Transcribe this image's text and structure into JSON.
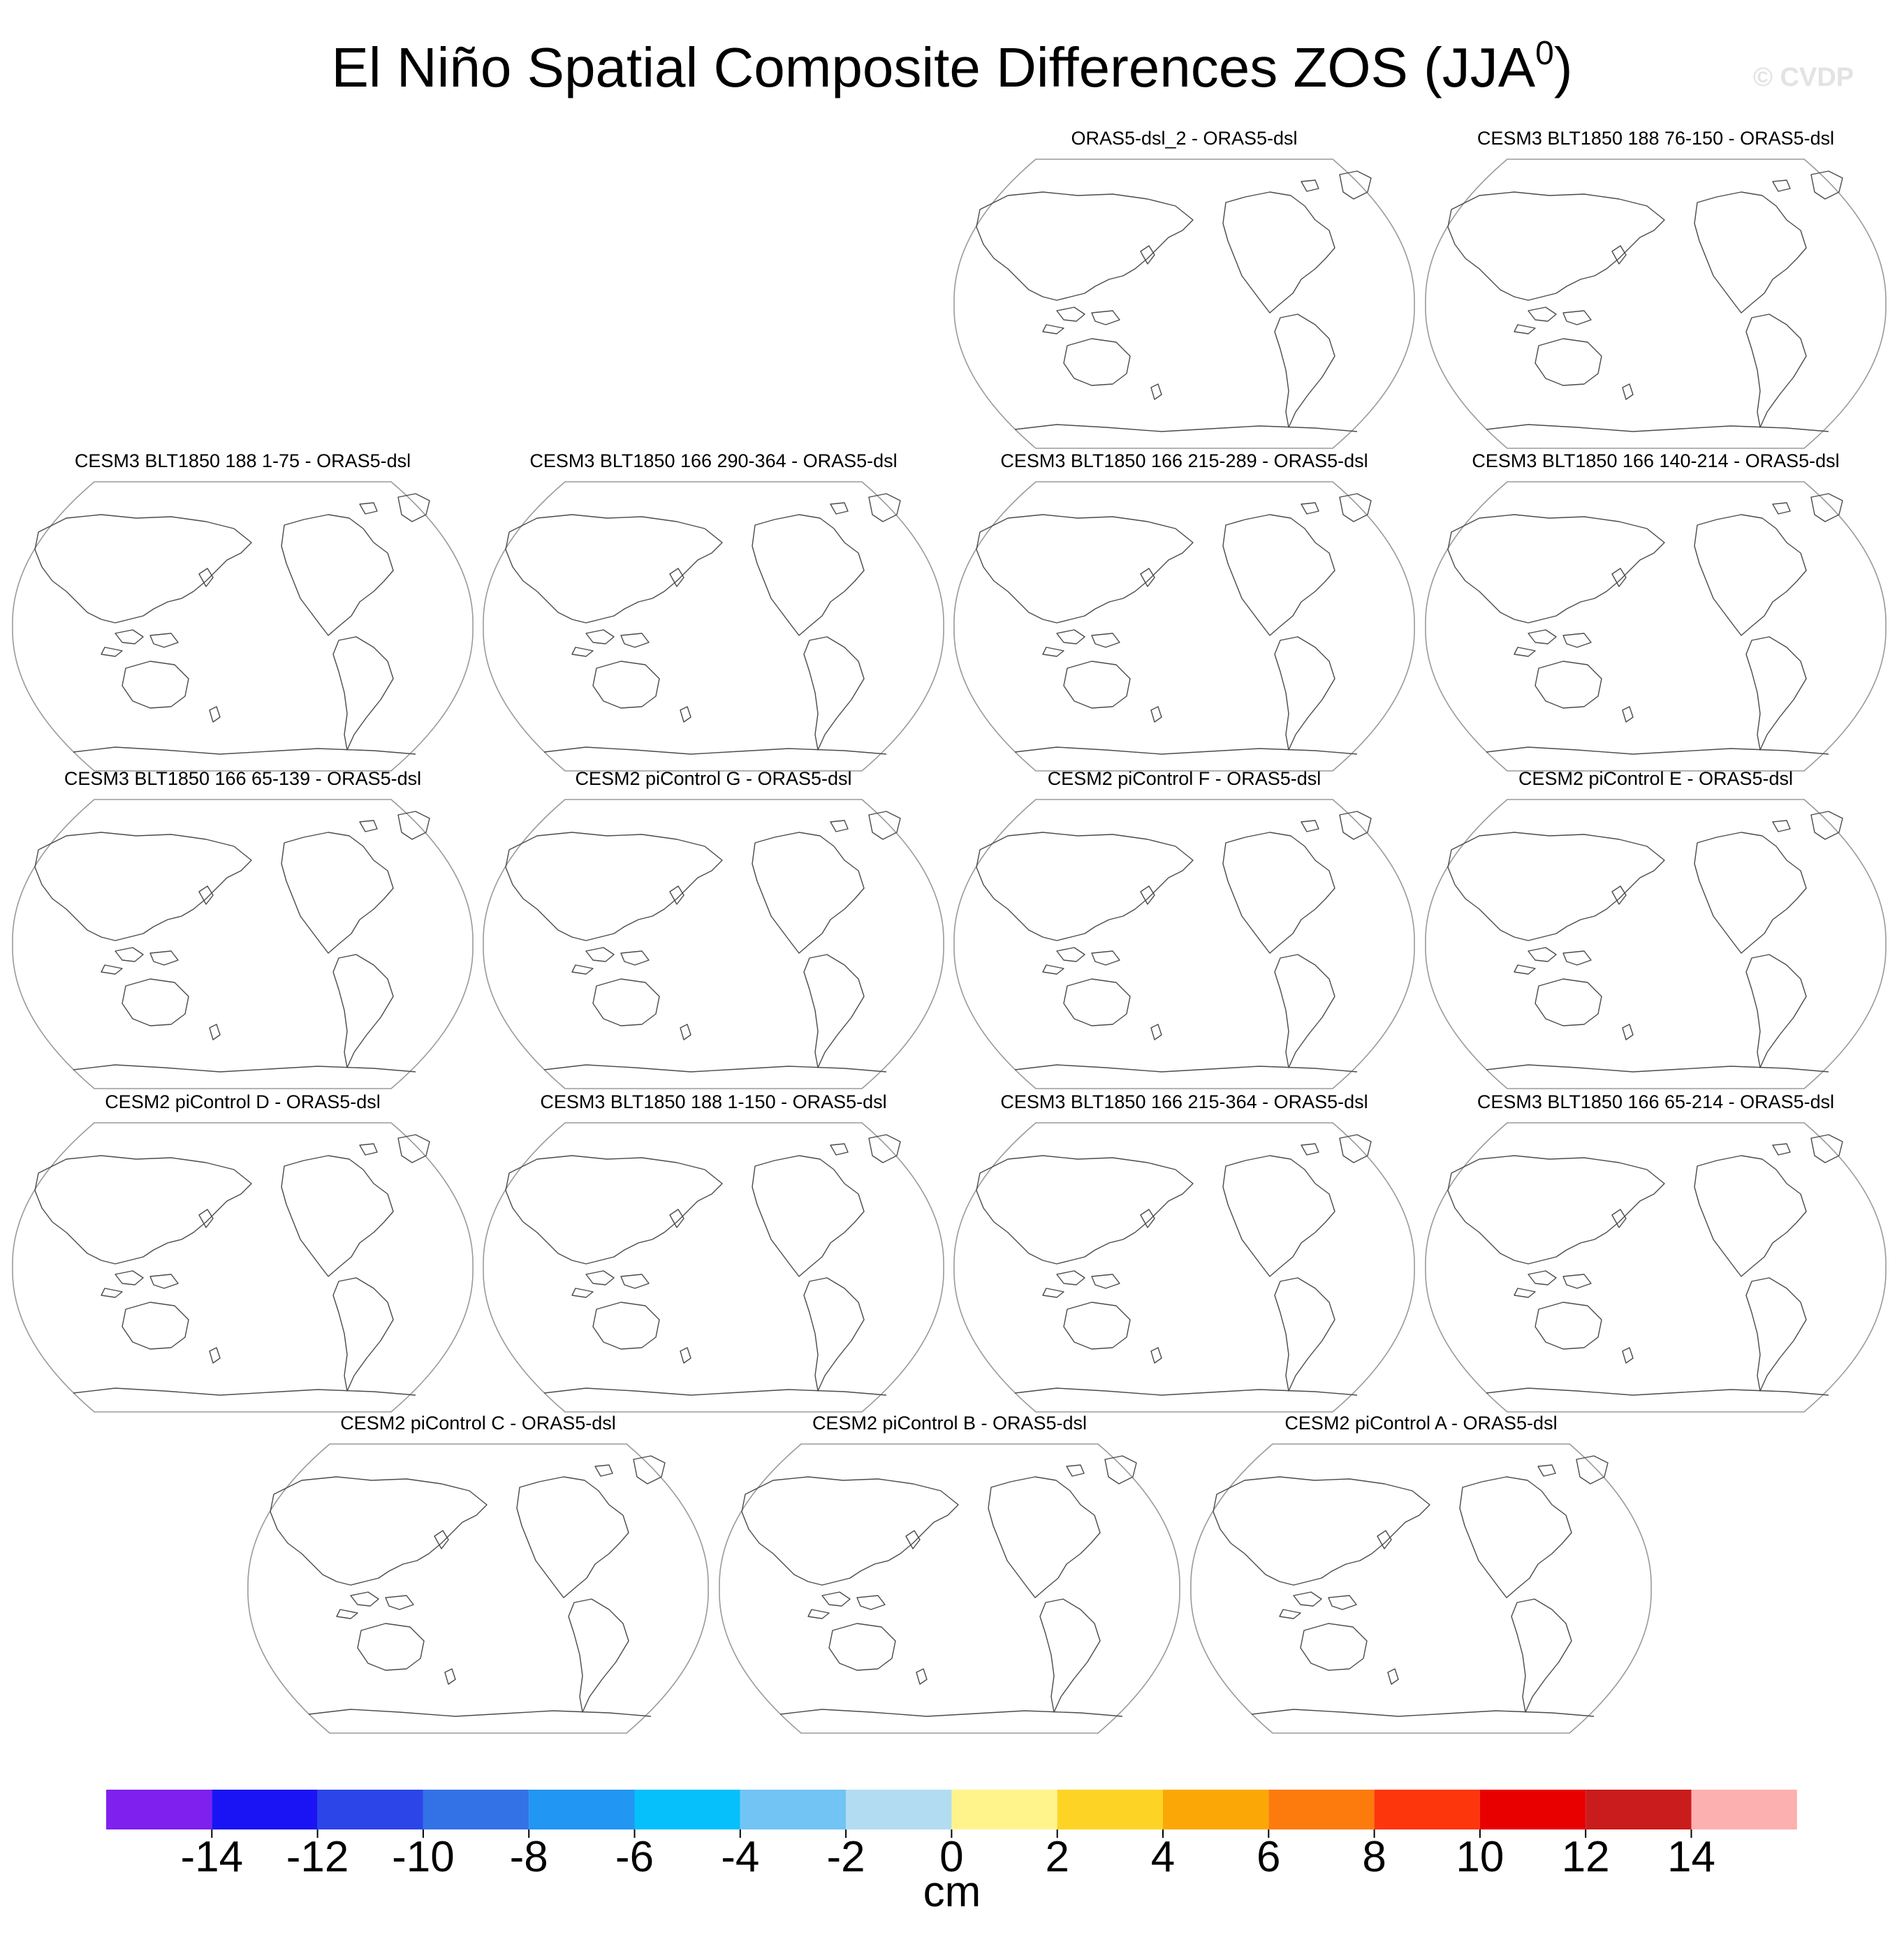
{
  "header": {
    "title": "El Niño Spatial Composite Differences ZOS (JJA",
    "title_sup": "0",
    "title_end": ")",
    "watermark": "© CVDP"
  },
  "chart_data": {
    "type": "map",
    "projection": "global map panels, Pacific-centered",
    "panels": [
      {
        "title": "ORAS5-dsl_2 - ORAS5-dsl"
      },
      {
        "title": "CESM3 BLT1850 188 76-150 - ORAS5-dsl"
      },
      {
        "title": "CESM3 BLT1850 188 1-75 - ORAS5-dsl"
      },
      {
        "title": "CESM3 BLT1850 166 290-364 - ORAS5-dsl"
      },
      {
        "title": "CESM3 BLT1850 166 215-289 - ORAS5-dsl"
      },
      {
        "title": "CESM3 BLT1850 166 140-214 - ORAS5-dsl"
      },
      {
        "title": "CESM3 BLT1850 166 65-139 - ORAS5-dsl"
      },
      {
        "title": "CESM2 piControl G - ORAS5-dsl"
      },
      {
        "title": "CESM2 piControl F - ORAS5-dsl"
      },
      {
        "title": "CESM2 piControl E - ORAS5-dsl"
      },
      {
        "title": "CESM2 piControl D - ORAS5-dsl"
      },
      {
        "title": "CESM3 BLT1850 188 1-150 - ORAS5-dsl"
      },
      {
        "title": "CESM3 BLT1850 166 215-364 - ORAS5-dsl"
      },
      {
        "title": "CESM3 BLT1850 166 65-214 - ORAS5-dsl"
      },
      {
        "title": "CESM2 piControl C - ORAS5-dsl"
      },
      {
        "title": "CESM2 piControl B - ORAS5-dsl"
      },
      {
        "title": "CESM2 piControl A - ORAS5-dsl"
      }
    ],
    "colorbar": {
      "levels": [
        -14,
        -12,
        -10,
        -8,
        -6,
        -4,
        -2,
        0,
        2,
        4,
        6,
        8,
        10,
        12,
        14
      ],
      "tick_labels": [
        "-14",
        "-12",
        "-10",
        "-8",
        "-6",
        "-4",
        "-2",
        "0",
        "2",
        "4",
        "6",
        "8",
        "10",
        "12",
        "14"
      ],
      "colors": [
        "#8020ee",
        "#1a14f5",
        "#2b45e8",
        "#3272e6",
        "#2196f2",
        "#06c0fb",
        "#72c4f4",
        "#b2dcf2",
        "#fff48c",
        "#fdd426",
        "#fba807",
        "#fd7b0c",
        "#fe360c",
        "#e80000",
        "#ca1c1c",
        "#fdb0b0"
      ],
      "unit": "cm"
    }
  }
}
